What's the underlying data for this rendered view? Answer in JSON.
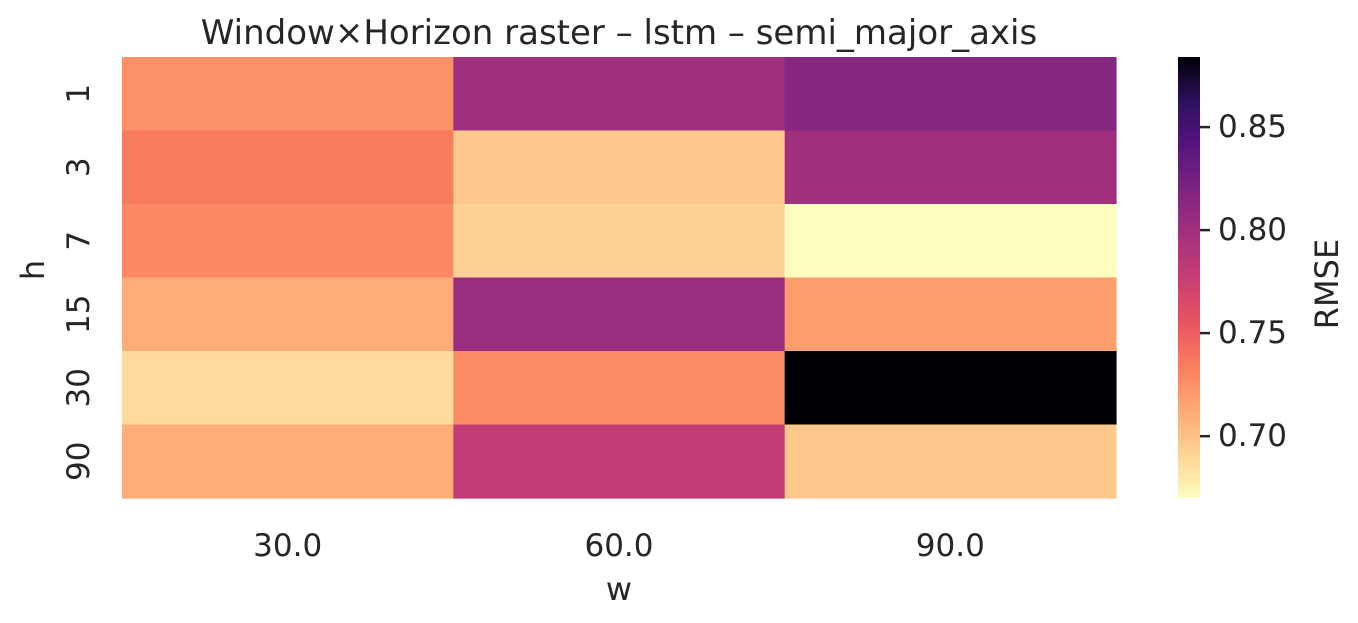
{
  "chart_data": {
    "type": "heatmap",
    "title": "Window×Horizon raster – lstm – semi_major_axis",
    "xlabel": "w",
    "ylabel": "h",
    "x_categories": [
      "30.0",
      "60.0",
      "90.0"
    ],
    "y_categories": [
      "1",
      "3",
      "7",
      "15",
      "30",
      "90"
    ],
    "values": [
      [
        0.725,
        0.8,
        0.815
      ],
      [
        0.735,
        0.697,
        0.8
      ],
      [
        0.728,
        0.692,
        0.67
      ],
      [
        0.711,
        0.804,
        0.718
      ],
      [
        0.688,
        0.727,
        0.884
      ],
      [
        0.711,
        0.78,
        0.697
      ]
    ],
    "colorbar": {
      "label": "RMSE",
      "vmin": 0.67,
      "vmax": 0.884,
      "ticks": [
        "0.70",
        "0.75",
        "0.80",
        "0.85"
      ],
      "colormap": "magma_r"
    }
  }
}
